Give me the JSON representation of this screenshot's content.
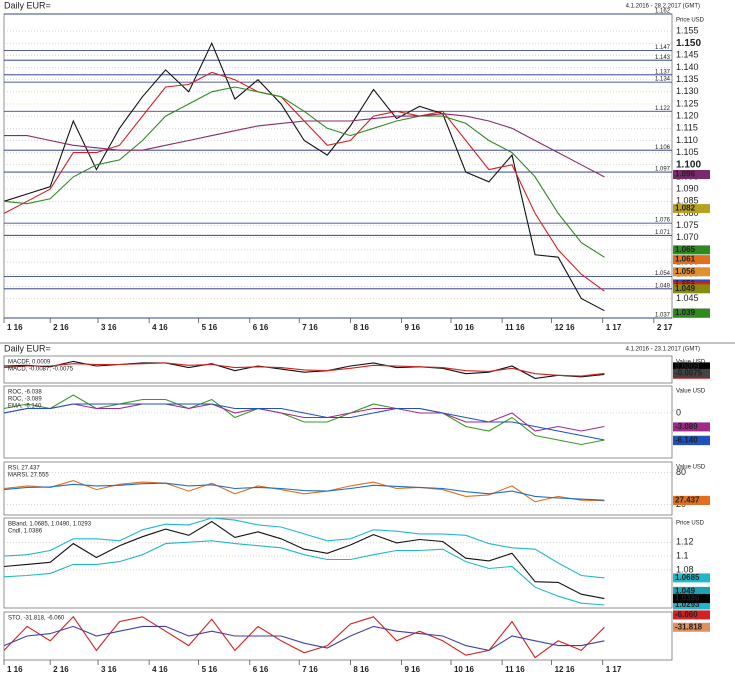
{
  "chart_data": [
    {
      "type": "line",
      "title": "Daily EUR=",
      "subtitle": "4.1.2016 - 28.2.2017 (GMT)",
      "y_axis_label": "Price USD",
      "x": [
        0,
        14,
        28,
        42,
        56,
        70,
        84,
        98,
        112,
        126,
        140,
        154,
        168,
        182,
        196,
        210,
        224,
        238,
        252,
        266,
        280,
        294,
        308,
        322,
        336,
        350,
        364
      ],
      "xlim": [
        0,
        405
      ],
      "xticks": [
        {
          "value": 0,
          "label": "1 16"
        },
        {
          "value": 28,
          "label": "2 16"
        },
        {
          "value": 57,
          "label": "3 16"
        },
        {
          "value": 88,
          "label": "4 16"
        },
        {
          "value": 118,
          "label": "5 16"
        },
        {
          "value": 149,
          "label": "6 16"
        },
        {
          "value": 179,
          "label": "7 16"
        },
        {
          "value": 210,
          "label": "8 16"
        },
        {
          "value": 241,
          "label": "9 16"
        },
        {
          "value": 271,
          "label": "10 16"
        },
        {
          "value": 302,
          "label": "11 16"
        },
        {
          "value": 332,
          "label": "12 16"
        },
        {
          "value": 363,
          "label": "1 17"
        },
        {
          "value": 394,
          "label": "2 17"
        }
      ],
      "ylim": [
        1.037,
        1.162
      ],
      "yticks": [
        1.045,
        {
          "value": 1.05,
          "label": "1.050"
        },
        1.055,
        {
          "value": 1.06,
          "label": "1.060"
        },
        1.065,
        {
          "value": 1.07,
          "label": "1.070"
        },
        1.075,
        {
          "value": 1.08,
          "label": "1.080"
        },
        1.085,
        {
          "value": 1.09,
          "label": "1.090"
        },
        1.095,
        {
          "value": 1.1,
          "label": "1.100"
        },
        1.105,
        {
          "value": 1.11,
          "label": "1.110"
        },
        1.115,
        {
          "value": 1.12,
          "label": "1.120"
        },
        1.125,
        {
          "value": 1.13,
          "label": "1.130"
        },
        1.135,
        {
          "value": 1.14,
          "label": "1.140"
        },
        1.145,
        {
          "value": 1.15,
          "label": "1.150"
        },
        1.155
      ],
      "levels": [
        1.162,
        1.147,
        1.143,
        1.137,
        1.134,
        1.122,
        1.106,
        1.097,
        1.076,
        1.071,
        1.054,
        1.049,
        1.037
      ],
      "series": [
        {
          "color": "#111111",
          "values": [
            1.085,
            1.088,
            1.091,
            1.118,
            1.098,
            1.115,
            1.128,
            1.139,
            1.13,
            1.15,
            1.127,
            1.135,
            1.125,
            1.11,
            1.104,
            1.116,
            1.131,
            1.119,
            1.124,
            1.121,
            1.097,
            1.093,
            1.104,
            1.063,
            1.062,
            1.045,
            1.04
          ]
        },
        {
          "color": "#d42020",
          "values": [
            1.08,
            1.085,
            1.09,
            1.105,
            1.105,
            1.108,
            1.12,
            1.132,
            1.133,
            1.138,
            1.135,
            1.13,
            1.128,
            1.118,
            1.108,
            1.11,
            1.12,
            1.122,
            1.12,
            1.122,
            1.11,
            1.098,
            1.1,
            1.08,
            1.065,
            1.055,
            1.048
          ]
        },
        {
          "color": "#2f8a20",
          "values": [
            1.085,
            1.084,
            1.086,
            1.095,
            1.1,
            1.102,
            1.11,
            1.12,
            1.125,
            1.13,
            1.132,
            1.13,
            1.128,
            1.122,
            1.115,
            1.112,
            1.115,
            1.118,
            1.12,
            1.12,
            1.117,
            1.11,
            1.105,
            1.095,
            1.08,
            1.068,
            1.062
          ]
        },
        {
          "color": "#8a2a6a",
          "values": [
            1.112,
            1.112,
            1.11,
            1.108,
            1.107,
            1.106,
            1.106,
            1.108,
            1.11,
            1.112,
            1.114,
            1.116,
            1.117,
            1.118,
            1.118,
            1.118,
            1.119,
            1.12,
            1.12,
            1.121,
            1.12,
            1.118,
            1.115,
            1.11,
            1.105,
            1.1,
            1.095
          ]
        }
      ],
      "markers": [
        {
          "value": 1.096,
          "label": "1.096",
          "color": "#7a2a6a"
        },
        {
          "value": 1.082,
          "label": "1.082",
          "color": "#b8a020"
        },
        {
          "value": 1.065,
          "label": "1.065",
          "color": "#2f8a20"
        },
        {
          "value": 1.061,
          "label": "1.061",
          "color": "#e07020"
        },
        {
          "value": 1.056,
          "label": "1.056",
          "color": "#e09030"
        },
        {
          "value": 1.051,
          "label": "1.051",
          "color": "#2050c0"
        },
        {
          "value": 1.05,
          "label": "1.050",
          "color": "#d42020"
        },
        {
          "value": 1.049,
          "label": "1.049",
          "color": "#8a8a10"
        },
        {
          "value": 1.039,
          "label": "1.039",
          "color": "#000000"
        },
        {
          "value": 1.039,
          "label": "1.039",
          "color": "#2f8a20"
        }
      ]
    },
    {
      "type": "line",
      "title": "Daily EUR=",
      "subtitle": "4.1.2016 - 23.1.2017 (GMT)",
      "y_axis_label": "Value USD",
      "x": [
        0,
        14,
        28,
        42,
        56,
        70,
        84,
        98,
        112,
        126,
        140,
        154,
        168,
        182,
        196,
        210,
        224,
        238,
        252,
        266,
        280,
        294,
        308,
        322,
        336,
        350,
        364
      ],
      "xlim": [
        0,
        405
      ],
      "ylim": [
        -0.02,
        0.015
      ],
      "series": [
        {
          "name": "MACDF, 0.0009",
          "color": "#111111",
          "values": [
            0.002,
            0.003,
            0.001,
            0.008,
            0.002,
            0.004,
            0.006,
            0.006,
            0.0,
            0.005,
            -0.004,
            0.002,
            -0.002,
            -0.006,
            -0.004,
            0.002,
            0.006,
            0.0,
            0.001,
            -0.001,
            -0.008,
            -0.006,
            0.002,
            -0.014,
            -0.01,
            -0.012,
            -0.009
          ]
        },
        {
          "name": "MACD, -0.0087, -0.0075",
          "color": "#d42020",
          "values": [
            0.0,
            0.002,
            0.002,
            0.005,
            0.004,
            0.004,
            0.005,
            0.006,
            0.003,
            0.004,
            0.0,
            0.001,
            0.0,
            -0.003,
            -0.004,
            -0.001,
            0.003,
            0.002,
            0.001,
            0.0,
            -0.004,
            -0.005,
            -0.001,
            -0.008,
            -0.01,
            -0.011,
            -0.0075
          ]
        }
      ],
      "markers": [
        {
          "value": 0.0009,
          "label": "0.0009",
          "color": "#000000"
        },
        {
          "value": -0.0087,
          "label": "-0.0087",
          "color": "#d42020"
        },
        {
          "value": -0.0075,
          "label": "-0.0075",
          "color": "#444444"
        }
      ]
    },
    {
      "type": "line",
      "y_axis_label": "Value USD",
      "x": [
        0,
        14,
        28,
        42,
        56,
        70,
        84,
        98,
        112,
        126,
        140,
        154,
        168,
        182,
        196,
        210,
        224,
        238,
        252,
        266,
        280,
        294,
        308,
        322,
        336,
        350,
        364
      ],
      "xlim": [
        0,
        405
      ],
      "ylim": [
        -10,
        6
      ],
      "yticks": [
        0
      ],
      "series": [
        {
          "name": "ROC, -6.038",
          "color": "#3a9a20",
          "values": [
            1,
            2,
            1,
            4,
            1,
            2,
            3,
            3,
            1,
            3,
            -1,
            1,
            0,
            -2,
            -2,
            0,
            2,
            1,
            1,
            0,
            -3,
            -4,
            -1,
            -5,
            -6,
            -7,
            -6
          ]
        },
        {
          "name": "ROC, -3.089",
          "color": "#a02a8a",
          "values": [
            0,
            1,
            1,
            2,
            1,
            1,
            2,
            2,
            1,
            2,
            0,
            1,
            0,
            -1,
            -1,
            0,
            1,
            1,
            0,
            0,
            -2,
            -2,
            0,
            -4,
            -3,
            -4,
            -3
          ]
        },
        {
          "name": "EMA, -6.140",
          "color": "#2050c0",
          "values": [
            0,
            1,
            1,
            2,
            2,
            2,
            2,
            2,
            2,
            2,
            1,
            1,
            1,
            0,
            -1,
            -1,
            0,
            1,
            1,
            0,
            -1,
            -2,
            -2,
            -3,
            -4,
            -5,
            -6
          ]
        }
      ],
      "markers": [
        {
          "value": -3.089,
          "label": "-3.089",
          "color": "#a02a8a"
        },
        {
          "value": -6.038,
          "label": "-6.038",
          "color": "#3a9a20"
        },
        {
          "value": -6.14,
          "label": "-6.140",
          "color": "#2050c0"
        }
      ]
    },
    {
      "type": "line",
      "y_axis_label": "Value USD",
      "x": [
        0,
        14,
        28,
        42,
        56,
        70,
        84,
        98,
        112,
        126,
        140,
        154,
        168,
        182,
        196,
        210,
        224,
        238,
        252,
        266,
        280,
        294,
        308,
        322,
        336,
        350,
        364
      ],
      "xlim": [
        0,
        405
      ],
      "ylim": [
        0,
        100
      ],
      "yticks": [
        20,
        80
      ],
      "series": [
        {
          "name": "RSI, 27.437",
          "color": "#e07020",
          "values": [
            50,
            55,
            52,
            65,
            48,
            58,
            62,
            60,
            45,
            60,
            40,
            55,
            48,
            40,
            45,
            55,
            62,
            50,
            52,
            48,
            35,
            38,
            55,
            25,
            35,
            28,
            27
          ]
        },
        {
          "name": "MARSI, 27.555",
          "color": "#2070c0",
          "values": [
            48,
            52,
            53,
            58,
            55,
            56,
            59,
            60,
            55,
            57,
            50,
            52,
            50,
            46,
            45,
            50,
            56,
            54,
            52,
            50,
            44,
            40,
            45,
            35,
            32,
            30,
            28
          ]
        }
      ],
      "markers": [
        {
          "value": 27.555,
          "label": "27.555",
          "color": "#2070c0"
        },
        {
          "value": 27.437,
          "label": "27.437",
          "color": "#e07020"
        }
      ]
    },
    {
      "type": "line",
      "y_axis_label": "Price USD",
      "x": [
        0,
        14,
        28,
        42,
        56,
        70,
        84,
        98,
        112,
        126,
        140,
        154,
        168,
        182,
        196,
        210,
        224,
        238,
        252,
        266,
        280,
        294,
        308,
        322,
        336,
        350,
        364
      ],
      "xlim": [
        0,
        405
      ],
      "ylim": [
        1.025,
        1.155
      ],
      "yticks": [
        1.08,
        1.1,
        1.12
      ],
      "series": [
        {
          "name": "BBand, 1.0685, 1.0490, 1.0293",
          "color": "#20b8c8",
          "values": [
            1.1,
            1.102,
            1.108,
            1.125,
            1.125,
            1.122,
            1.138,
            1.146,
            1.145,
            1.155,
            1.152,
            1.145,
            1.142,
            1.132,
            1.122,
            1.125,
            1.138,
            1.136,
            1.132,
            1.132,
            1.13,
            1.118,
            1.112,
            1.11,
            1.09,
            1.072,
            1.0685
          ]
        },
        {
          "color": "#20b8c8",
          "values": [
            1.07,
            1.072,
            1.075,
            1.088,
            1.088,
            1.092,
            1.102,
            1.118,
            1.12,
            1.122,
            1.118,
            1.115,
            1.112,
            1.102,
            1.095,
            1.095,
            1.102,
            1.108,
            1.108,
            1.11,
            1.092,
            1.082,
            1.085,
            1.055,
            1.042,
            1.032,
            1.0293
          ]
        },
        {
          "name": "Cndl, 1.0386",
          "color": "#111111",
          "values": [
            1.085,
            1.088,
            1.091,
            1.118,
            1.098,
            1.115,
            1.128,
            1.139,
            1.13,
            1.15,
            1.127,
            1.135,
            1.125,
            1.11,
            1.104,
            1.116,
            1.131,
            1.119,
            1.124,
            1.121,
            1.097,
            1.093,
            1.104,
            1.063,
            1.062,
            1.045,
            1.0386
          ]
        }
      ],
      "markers": [
        {
          "value": 1.0685,
          "label": "1.0685",
          "color": "#20b8c8"
        },
        {
          "value": 1.049,
          "label": "1.049",
          "color": "#20a0b0"
        },
        {
          "value": 1.0293,
          "label": "1.0293",
          "color": "#20b8c8"
        },
        {
          "value": 1.0386,
          "label": "1.0386",
          "color": "#000000"
        }
      ]
    },
    {
      "type": "line",
      "y_axis_label": "Value USD",
      "x": [
        0,
        14,
        28,
        42,
        56,
        70,
        84,
        98,
        112,
        126,
        140,
        154,
        168,
        182,
        196,
        210,
        224,
        238,
        252,
        266,
        280,
        294,
        308,
        322,
        336,
        350,
        364
      ],
      "xlim": [
        0,
        405
      ],
      "ylim": [
        -100,
        0
      ],
      "xticks": [
        {
          "value": 0,
          "label": "1 16"
        },
        {
          "value": 28,
          "label": "2 16"
        },
        {
          "value": 57,
          "label": "3 16"
        },
        {
          "value": 88,
          "label": "4 16"
        },
        {
          "value": 118,
          "label": "5 16"
        },
        {
          "value": 149,
          "label": "6 16"
        },
        {
          "value": 179,
          "label": "7 16"
        },
        {
          "value": 210,
          "label": "8 16"
        },
        {
          "value": 241,
          "label": "9 16"
        },
        {
          "value": 271,
          "label": "10 16"
        },
        {
          "value": 302,
          "label": "11 16"
        },
        {
          "value": 332,
          "label": "12 16"
        },
        {
          "value": 363,
          "label": "1 17"
        }
      ],
      "series": [
        {
          "name": "STO, -31.818, -6.060",
          "color": "#d42020",
          "values": [
            -80,
            -30,
            -60,
            -10,
            -80,
            -20,
            -10,
            -40,
            -70,
            -15,
            -80,
            -30,
            -60,
            -85,
            -70,
            -25,
            -10,
            -60,
            -40,
            -60,
            -90,
            -80,
            -20,
            -95,
            -60,
            -80,
            -31.818
          ]
        },
        {
          "color": "#4040a0",
          "values": [
            -70,
            -50,
            -45,
            -30,
            -50,
            -40,
            -30,
            -30,
            -50,
            -40,
            -50,
            -50,
            -50,
            -65,
            -75,
            -50,
            -30,
            -40,
            -45,
            -50,
            -70,
            -80,
            -50,
            -60,
            -70,
            -70,
            -60
          ]
        }
      ],
      "markers": [
        {
          "value": -6.06,
          "label": "-6.060",
          "color": "#d42020"
        },
        {
          "value": -31.818,
          "label": "-31.818",
          "color": "#e09060"
        }
      ]
    }
  ]
}
